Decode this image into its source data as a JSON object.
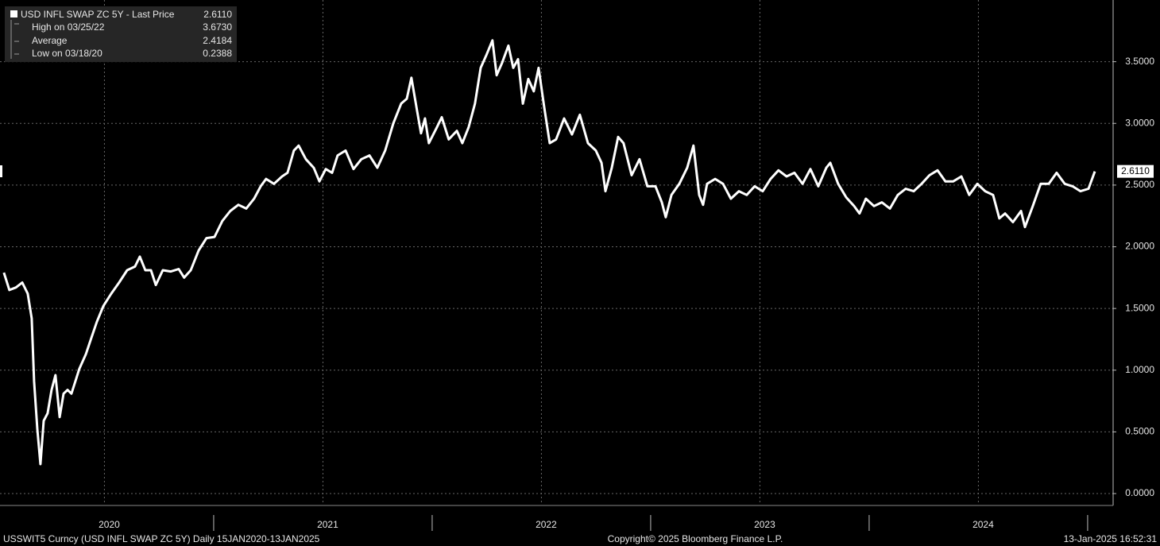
{
  "chart_data": {
    "type": "line",
    "legend": {
      "title": "USD INFL SWAP ZC 5Y - Last Price",
      "last": "2.6110",
      "rows": [
        {
          "label": "High on 03/25/22",
          "value": "3.6730"
        },
        {
          "label": "Average",
          "value": "2.4184"
        },
        {
          "label": "Low on 03/18/20",
          "value": "0.2388"
        }
      ]
    },
    "last_label": "2.6110",
    "footer": {
      "left": "USSWIT5 Curncy (USD INFL SWAP ZC 5Y)  Daily 15JAN2020-13JAN2025",
      "center": "Copyright© 2025 Bloomberg Finance L.P.",
      "right": "13-Jan-2025 16:52:31"
    },
    "xlim": [
      2020.022,
      2025.113
    ],
    "xticks": [
      {
        "value": 2020.5,
        "label": "2020"
      },
      {
        "value": 2021.5,
        "label": "2021"
      },
      {
        "value": 2022.5,
        "label": "2022"
      },
      {
        "value": 2023.5,
        "label": "2023"
      },
      {
        "value": 2024.5,
        "label": "2024"
      }
    ],
    "ylim": [
      -0.09,
      4.0
    ],
    "yticks": [
      {
        "value": 0,
        "label": "0.0000"
      },
      {
        "value": 0.5,
        "label": "0.5000"
      },
      {
        "value": 1,
        "label": "1.0000"
      },
      {
        "value": 1.5,
        "label": "1.5000"
      },
      {
        "value": 2,
        "label": "2.0000"
      },
      {
        "value": 2.5,
        "label": "2.5000"
      },
      {
        "value": 3,
        "label": "3.0000"
      },
      {
        "value": 3.5,
        "label": "3.5000"
      }
    ],
    "grid": true,
    "series": [
      {
        "name": "USD INFL SWAP ZC 5Y",
        "color": "#ffffff",
        "x": [
          2020.04,
          2020.065,
          2020.095,
          2020.124,
          2020.149,
          2020.167,
          2020.178,
          2020.193,
          2020.207,
          2020.222,
          2020.24,
          2020.258,
          2020.276,
          2020.295,
          2020.313,
          2020.331,
          2020.349,
          2020.367,
          2020.385,
          2020.415,
          2020.44,
          2020.465,
          2020.495,
          2020.531,
          2020.567,
          2020.604,
          2020.64,
          2020.662,
          2020.687,
          2020.713,
          2020.735,
          2020.767,
          2020.804,
          2020.84,
          2020.865,
          2020.895,
          2020.931,
          2020.967,
          2021.004,
          2021.04,
          2021.076,
          2021.113,
          2021.149,
          2021.185,
          2021.215,
          2021.24,
          2021.276,
          2021.313,
          2021.338,
          2021.367,
          2021.389,
          2021.422,
          2021.458,
          2021.484,
          2021.513,
          2021.542,
          2021.567,
          2021.604,
          2021.64,
          2021.676,
          2021.713,
          2021.749,
          2021.785,
          2021.822,
          2021.858,
          2021.884,
          2021.905,
          2021.931,
          2021.949,
          2021.967,
          2021.985,
          2022.022,
          2022.044,
          2022.076,
          2022.113,
          2022.138,
          2022.167,
          2022.196,
          2022.222,
          2022.247,
          2022.276,
          2022.295,
          2022.32,
          2022.349,
          2022.371,
          2022.393,
          2022.415,
          2022.44,
          2022.465,
          2022.487,
          2022.513,
          2022.538,
          2022.567,
          2022.604,
          2022.64,
          2022.676,
          2022.713,
          2022.749,
          2022.775,
          2022.793,
          2022.822,
          2022.851,
          2022.876,
          2022.913,
          2022.949,
          2022.985,
          2023.022,
          2023.051,
          2023.069,
          2023.095,
          2023.131,
          2023.167,
          2023.196,
          2023.222,
          2023.24,
          2023.258,
          2023.295,
          2023.331,
          2023.367,
          2023.404,
          2023.44,
          2023.476,
          2023.513,
          2023.549,
          2023.585,
          2023.622,
          2023.658,
          2023.695,
          2023.731,
          2023.767,
          2023.804,
          2023.822,
          2023.858,
          2023.895,
          2023.931,
          2023.956,
          2023.985,
          2024.022,
          2024.058,
          2024.095,
          2024.131,
          2024.167,
          2024.204,
          2024.24,
          2024.276,
          2024.313,
          2024.349,
          2024.385,
          2024.422,
          2024.458,
          2024.495,
          2024.531,
          2024.567,
          2024.596,
          2024.622,
          2024.658,
          2024.695,
          2024.713,
          2024.749,
          2024.785,
          2024.822,
          2024.858,
          2024.895,
          2024.931,
          2024.967,
          2025.004,
          2025.033
        ],
        "values": [
          1.79,
          1.65,
          1.67,
          1.71,
          1.62,
          1.42,
          0.91,
          0.52,
          0.2388,
          0.59,
          0.65,
          0.84,
          0.96,
          0.62,
          0.81,
          0.84,
          0.81,
          0.91,
          1.01,
          1.13,
          1.26,
          1.39,
          1.52,
          1.62,
          1.71,
          1.81,
          1.84,
          1.92,
          1.81,
          1.81,
          1.69,
          1.81,
          1.8,
          1.82,
          1.75,
          1.81,
          1.97,
          2.07,
          2.08,
          2.21,
          2.29,
          2.34,
          2.31,
          2.39,
          2.49,
          2.55,
          2.51,
          2.57,
          2.6,
          2.78,
          2.82,
          2.71,
          2.64,
          2.53,
          2.63,
          2.6,
          2.74,
          2.78,
          2.63,
          2.71,
          2.74,
          2.64,
          2.78,
          3.0,
          3.16,
          3.2,
          3.37,
          3.1,
          2.92,
          3.04,
          2.84,
          2.97,
          3.05,
          2.87,
          2.94,
          2.84,
          2.97,
          3.16,
          3.45,
          3.55,
          3.673,
          3.39,
          3.49,
          3.63,
          3.45,
          3.52,
          3.16,
          3.36,
          3.26,
          3.45,
          3.13,
          2.84,
          2.87,
          3.04,
          2.91,
          3.07,
          2.84,
          2.78,
          2.68,
          2.45,
          2.64,
          2.89,
          2.84,
          2.58,
          2.71,
          2.49,
          2.49,
          2.36,
          2.24,
          2.42,
          2.51,
          2.64,
          2.82,
          2.42,
          2.34,
          2.51,
          2.55,
          2.51,
          2.39,
          2.45,
          2.42,
          2.49,
          2.45,
          2.55,
          2.62,
          2.57,
          2.6,
          2.51,
          2.63,
          2.49,
          2.64,
          2.68,
          2.51,
          2.4,
          2.33,
          2.27,
          2.39,
          2.33,
          2.36,
          2.31,
          2.42,
          2.47,
          2.45,
          2.51,
          2.58,
          2.62,
          2.53,
          2.53,
          2.57,
          2.42,
          2.51,
          2.45,
          2.42,
          2.23,
          2.27,
          2.2,
          2.29,
          2.16,
          2.33,
          2.51,
          2.51,
          2.6,
          2.51,
          2.49,
          2.45,
          2.47,
          2.611
        ]
      }
    ]
  }
}
